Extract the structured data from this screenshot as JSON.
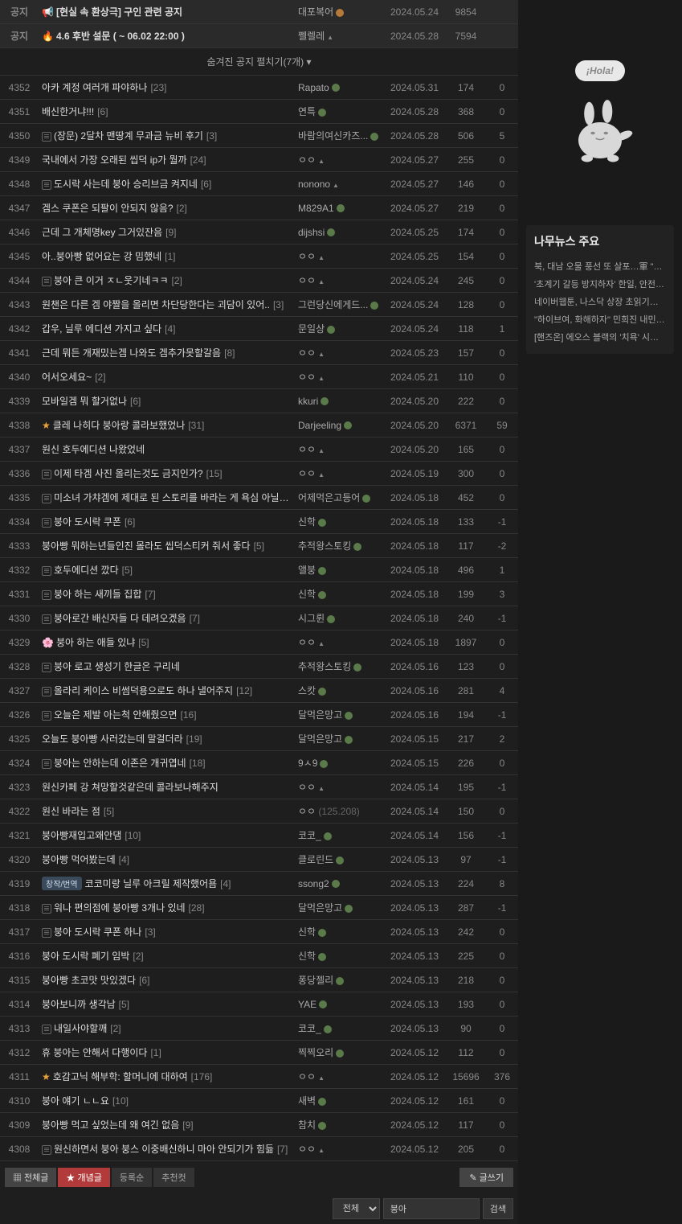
{
  "notices": [
    {
      "num": "공지",
      "icon": "📢",
      "title": "[현실 속 환상극] 구인 관련 공지",
      "author": "대포복어",
      "verified": "orange",
      "date": "2024.05.24",
      "views": "9854",
      "rec": ""
    },
    {
      "num": "공지",
      "icon": "🔥",
      "title": "4.6 후반 설문 ( ~ 06.02 22:00 )",
      "author": "쩰렐레",
      "user_icon": true,
      "date": "2024.05.28",
      "views": "7594",
      "rec": ""
    }
  ],
  "hidden_notice": "숨겨진 공지 펼치기(7개) ▾",
  "posts": [
    {
      "num": "4352",
      "title": "아카 계정 여러개 파야하나",
      "cc": "[23]",
      "author": "Rapato",
      "verified": true,
      "date": "2024.05.31",
      "views": "174",
      "rec": "0"
    },
    {
      "num": "4351",
      "title": "배신한거냐!!!",
      "cc": "[6]",
      "author": "연특",
      "verified": true,
      "date": "2024.05.28",
      "views": "368",
      "rec": "0"
    },
    {
      "num": "4350",
      "file": true,
      "title": "(장문) 2달차 맨땅계 무과금 뉴비 후기",
      "cc": "[3]",
      "author": "바람의여신카즈...",
      "verified": true,
      "date": "2024.05.28",
      "views": "506",
      "rec": "5"
    },
    {
      "num": "4349",
      "title": "국내에서 가장 오래된 씹덕 ip가 뭘까",
      "cc": "[24]",
      "author": "ㅇㅇ",
      "user_icon": true,
      "date": "2024.05.27",
      "views": "255",
      "rec": "0"
    },
    {
      "num": "4348",
      "file": true,
      "title": "도시락 사는데 붕아 승리브금 켜지네",
      "cc": "[6]",
      "author": "nonono",
      "user_icon": true,
      "date": "2024.05.27",
      "views": "146",
      "rec": "0"
    },
    {
      "num": "4347",
      "title": "겜스 쿠폰은 되팔이 안되지 않음?",
      "cc": "[2]",
      "author": "M829A1",
      "verified": true,
      "date": "2024.05.27",
      "views": "219",
      "rec": "0"
    },
    {
      "num": "4346",
      "title": "근데 그 개체명key 그거있잔음",
      "cc": "[9]",
      "author": "dijshsi",
      "verified": true,
      "date": "2024.05.25",
      "views": "174",
      "rec": "0"
    },
    {
      "num": "4345",
      "title": "아..붕아빵 없어요는 강 밈했네",
      "cc": "[1]",
      "author": "ㅇㅇ",
      "user_icon": true,
      "date": "2024.05.25",
      "views": "154",
      "rec": "0"
    },
    {
      "num": "4344",
      "file": true,
      "title": "붕아 큰 이거 ㅈㄴ웃기네ㅋㅋ",
      "cc": "[2]",
      "author": "ㅇㅇ",
      "user_icon": true,
      "date": "2024.05.24",
      "views": "245",
      "rec": "0"
    },
    {
      "num": "4343",
      "title": "원챈은 다른 겜 야짤을 올리면 차단당한다는 괴담이 있어..",
      "cc": "[3]",
      "author": "그런당신에게드...",
      "verified": true,
      "date": "2024.05.24",
      "views": "128",
      "rec": "0"
    },
    {
      "num": "4342",
      "title": "갑우, 닐루 에디션 가지고 싶다",
      "cc": "[4]",
      "author": "문일상",
      "verified": true,
      "date": "2024.05.24",
      "views": "118",
      "rec": "1"
    },
    {
      "num": "4341",
      "title": "근데 뭐든 개재밌는겜 나와도 겜추가못할갈음",
      "cc": "[8]",
      "author": "ㅇㅇ",
      "user_icon": true,
      "date": "2024.05.23",
      "views": "157",
      "rec": "0"
    },
    {
      "num": "4340",
      "title": "어서오세요~",
      "cc": "[2]",
      "author": "ㅇㅇ",
      "user_icon": true,
      "date": "2024.05.21",
      "views": "110",
      "rec": "0"
    },
    {
      "num": "4339",
      "title": "모바일겜 뭐 할거없나",
      "cc": "[6]",
      "author": "kkuri",
      "verified": true,
      "date": "2024.05.20",
      "views": "222",
      "rec": "0"
    },
    {
      "num": "4338",
      "star": true,
      "title": "클레 나히다 붕아랑 콜라보했었나",
      "cc": "[31]",
      "author": "Darjeeling",
      "verified": true,
      "date": "2024.05.20",
      "views": "6371",
      "rec": "59"
    },
    {
      "num": "4337",
      "title": "원신 호두에디션 나왔었네",
      "author": "ㅇㅇ",
      "user_icon": true,
      "date": "2024.05.20",
      "views": "165",
      "rec": "0"
    },
    {
      "num": "4336",
      "file": true,
      "title": "이제 타겜 사진 올리는것도 금지인가?",
      "cc": "[15]",
      "author": "ㅇㅇ",
      "user_icon": true,
      "date": "2024.05.19",
      "views": "300",
      "rec": "0"
    },
    {
      "num": "4335",
      "file": true,
      "title": "미소녀 가챠겜에 제대로 된 스토리를 바라는 게 욕심 아닐까 라는 생각도 듬",
      "cc": "[10]",
      "author": "어제먹은고등어",
      "verified": true,
      "date": "2024.05.18",
      "views": "452",
      "rec": "0"
    },
    {
      "num": "4334",
      "file": true,
      "title": "붕아 도시락 쿠폰",
      "cc": "[6]",
      "author": "신학",
      "verified": true,
      "date": "2024.05.18",
      "views": "133",
      "rec": "-1"
    },
    {
      "num": "4333",
      "title": "붕아빵 뭐하는년들인진 몰라도 씹덕스티커 줘서 좋다",
      "cc": "[5]",
      "author": "추적왕스토킹",
      "verified": true,
      "date": "2024.05.18",
      "views": "117",
      "rec": "-2"
    },
    {
      "num": "4332",
      "file": true,
      "title": "호두에디션 깠다",
      "cc": "[5]",
      "author": "앨붕",
      "verified": true,
      "date": "2024.05.18",
      "views": "496",
      "rec": "1"
    },
    {
      "num": "4331",
      "file": true,
      "title": "붕아 하는 새끼들 집합",
      "cc": "[7]",
      "author": "신학",
      "verified": true,
      "date": "2024.05.18",
      "views": "199",
      "rec": "3"
    },
    {
      "num": "4330",
      "file": true,
      "title": "붕아로간 배신자들 다 데려오겠음",
      "cc": "[7]",
      "author": "시그륀",
      "verified": true,
      "date": "2024.05.18",
      "views": "240",
      "rec": "-1"
    },
    {
      "num": "4329",
      "emoji": "🌸",
      "title": "붕아 하는 애들 있냐",
      "cc": "[5]",
      "author": "ㅇㅇ",
      "user_icon": true,
      "date": "2024.05.18",
      "views": "1897",
      "rec": "0"
    },
    {
      "num": "4328",
      "file": true,
      "title": "붕아 로고 생성기 한글은 구리네",
      "author": "추적왕스토킹",
      "verified": true,
      "date": "2024.05.16",
      "views": "123",
      "rec": "0"
    },
    {
      "num": "4327",
      "file": true,
      "title": "올라리 케이스 비썸덕용으로도 하나 낼어주지",
      "cc": "[12]",
      "author": "스캇",
      "verified": true,
      "date": "2024.05.16",
      "views": "281",
      "rec": "4"
    },
    {
      "num": "4326",
      "file": true,
      "title": "오늘은 제발 아는척 안해줬으면",
      "cc": "[16]",
      "author": "달먹은망고",
      "verified": true,
      "date": "2024.05.16",
      "views": "194",
      "rec": "-1"
    },
    {
      "num": "4325",
      "title": "오늘도 붕아빵 사러갔는데 말걸더라",
      "cc": "[19]",
      "author": "달먹은망고",
      "verified": true,
      "date": "2024.05.15",
      "views": "217",
      "rec": "2"
    },
    {
      "num": "4324",
      "file": true,
      "title": "붕아는 안하는데 이존은 개귀엽네",
      "cc": "[18]",
      "author": "9ㅅ9",
      "verified": true,
      "date": "2024.05.15",
      "views": "226",
      "rec": "0"
    },
    {
      "num": "4323",
      "title": "원신카페 강 쳐망할것같은데 콜라보나해주지",
      "author": "ㅇㅇ",
      "user_icon": true,
      "date": "2024.05.14",
      "views": "195",
      "rec": "-1"
    },
    {
      "num": "4322",
      "title": "원신 바라는 점",
      "cc": "[5]",
      "author": "ㅇㅇ",
      "ip": "(125.208)",
      "date": "2024.05.14",
      "views": "150",
      "rec": "0"
    },
    {
      "num": "4321",
      "title": "붕아빵재입고왜안댐",
      "cc": "[10]",
      "author": "코코_",
      "verified": true,
      "date": "2024.05.14",
      "views": "156",
      "rec": "-1"
    },
    {
      "num": "4320",
      "title": "붕아빵 먹어봤는데",
      "cc": "[4]",
      "author": "클로린드",
      "verified": true,
      "date": "2024.05.13",
      "views": "97",
      "rec": "-1"
    },
    {
      "num": "4319",
      "tag": "창작/번역",
      "title": "코코미랑 닐루 아크릴 제작했어욤",
      "cc": "[4]",
      "author": "ssong2",
      "verified": true,
      "date": "2024.05.13",
      "views": "224",
      "rec": "8"
    },
    {
      "num": "4318",
      "file": true,
      "title": "워나 편의점에 붕아빵 3개나 있네",
      "cc": "[28]",
      "author": "달먹은망고",
      "verified": true,
      "date": "2024.05.13",
      "views": "287",
      "rec": "-1"
    },
    {
      "num": "4317",
      "file": true,
      "title": "붕아 도시락 쿠폰 하나",
      "cc": "[3]",
      "author": "신학",
      "verified": true,
      "date": "2024.05.13",
      "views": "242",
      "rec": "0"
    },
    {
      "num": "4316",
      "title": "붕아 도시락 폐기 임박",
      "cc": "[2]",
      "author": "신학",
      "verified": true,
      "date": "2024.05.13",
      "views": "225",
      "rec": "0"
    },
    {
      "num": "4315",
      "title": "붕아빵 초코맛 맛있겠다",
      "cc": "[6]",
      "author": "퐁당젤리",
      "verified": true,
      "date": "2024.05.13",
      "views": "218",
      "rec": "0"
    },
    {
      "num": "4314",
      "title": "붕아보니까 생각남",
      "cc": "[5]",
      "author": "YAE",
      "verified": true,
      "date": "2024.05.13",
      "views": "193",
      "rec": "0"
    },
    {
      "num": "4313",
      "file": true,
      "title": "내일사야할깨",
      "cc": "[2]",
      "author": "코코_",
      "verified": true,
      "date": "2024.05.13",
      "views": "90",
      "rec": "0"
    },
    {
      "num": "4312",
      "title": "휴 붕아는 안해서 다행이다",
      "cc": "[1]",
      "author": "찍찍오리",
      "verified": true,
      "date": "2024.05.12",
      "views": "112",
      "rec": "0"
    },
    {
      "num": "4311",
      "star": true,
      "title": "호감고닉 해부학: 할머니에 대하여",
      "cc": "[176]",
      "author": "ㅇㅇ",
      "user_icon": true,
      "date": "2024.05.12",
      "views": "15696",
      "rec": "376"
    },
    {
      "num": "4310",
      "title": "붕아 얘기 ㄴㄴ요",
      "cc": "[10]",
      "author": "새벽",
      "verified": true,
      "date": "2024.05.12",
      "views": "161",
      "rec": "0"
    },
    {
      "num": "4309",
      "title": "붕아빵 먹고 싶었는데 왜 여긴 없음",
      "cc": "[9]",
      "author": "참치",
      "verified": true,
      "date": "2024.05.12",
      "views": "117",
      "rec": "0"
    },
    {
      "num": "4308",
      "file": true,
      "title": "원신하면서 붕아 붕스 이중배신하니 마아 안되기가 힘듦",
      "cc": "[7]",
      "author": "ㅇㅇ",
      "user_icon": true,
      "date": "2024.05.12",
      "views": "205",
      "rec": "0"
    }
  ],
  "tabs": {
    "all": "▦ 전체글",
    "hot": "★ 개념글",
    "recent": "등록순",
    "recommend": "추천컷"
  },
  "write_btn": "✎ 글쓰기",
  "search": {
    "select": "전체",
    "value": "붕아",
    "btn": "검색"
  },
  "mascot_speech": "¡Hola!",
  "news": {
    "title": "나무뉴스 주요",
    "items": [
      "북, 대남 오물 풍선 또 살포…軍 \"적재물 낙하 주의\"…",
      "'초계기 갈등 방지하자' 한일, 안전거리 지키고 통…",
      "네이버웹툰, 나스닥 상장 초읽기…\"최대 7천억원 …",
      "\"하이브여, 화해하자\" 민희진 내민 손, 잡을까 말까…",
      "[핸즈온] 에오스 블랙의 '치욕' 시스템 경험 후기"
    ]
  }
}
